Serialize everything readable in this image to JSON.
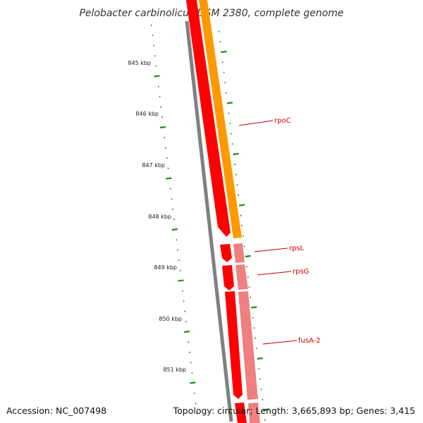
{
  "title": "Pelobacter carbinolicus DSM 2380, complete genome",
  "accession_text": "Accession: NC_007498",
  "topology_text": "Topology: circular; Length: 3,665,893 bp; Genes: 3,415",
  "scale_labels": [
    "845 kbp",
    "846 kbp",
    "847 kbp",
    "848 kbp",
    "849 kbp",
    "850 kbp",
    "851 kbp"
  ],
  "genes": [
    {
      "name": "rpoC",
      "strand": "forward",
      "color": "#ff0000",
      "cds_color": "#ff9900"
    },
    {
      "name": "rpsL",
      "strand": "forward",
      "color": "#ff0000",
      "cds_color": "#f08080"
    },
    {
      "name": "rpsG",
      "strand": "forward",
      "color": "#ff0000",
      "cds_color": "#f08080"
    },
    {
      "name": "fusA-2",
      "strand": "forward",
      "color": "#ff0000",
      "cds_color": "#f08080"
    }
  ],
  "colors": {
    "backbone": "#808080",
    "gene": "#ff0000",
    "cds_orange": "#ff9900",
    "cds_pink": "#f08080",
    "ticks": "#228b22",
    "label": "#cc0000"
  }
}
